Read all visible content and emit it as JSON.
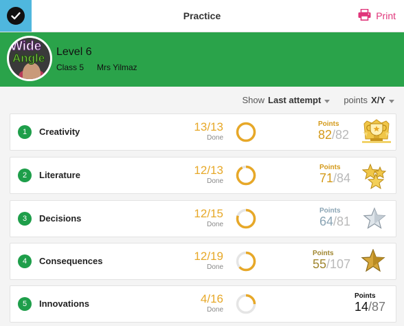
{
  "header": {
    "title": "Practice",
    "print_label": "Print",
    "check_icon": "check-icon",
    "print_icon": "printer-icon"
  },
  "banner": {
    "level": "Level 6",
    "class_name": "Class 5",
    "teacher": "Mrs Yilmaz",
    "avatar_text_1": "Wide",
    "avatar_text_2": "Angle",
    "color": "#2aa34a"
  },
  "filters": {
    "show_label": "Show",
    "show_value": "Last attempt",
    "points_label": "points",
    "points_value": "X/Y"
  },
  "units": [
    {
      "num": "1",
      "name": "Creativity",
      "done": 13,
      "done_total": 13,
      "done_label": "Done",
      "points_label": "Points",
      "points": 82,
      "points_total": 82,
      "award": "trophy-icon"
    },
    {
      "num": "2",
      "name": "Literature",
      "done": 12,
      "done_total": 13,
      "done_label": "Done",
      "points_label": "Points",
      "points": 71,
      "points_total": 84,
      "award": "gold-stars-icon"
    },
    {
      "num": "3",
      "name": "Decisions",
      "done": 12,
      "done_total": 15,
      "done_label": "Done",
      "points_label": "Points",
      "points": 64,
      "points_total": 81,
      "award": "silver-star-icon"
    },
    {
      "num": "4",
      "name": "Consequences",
      "done": 12,
      "done_total": 19,
      "done_label": "Done",
      "points_label": "Points",
      "points": 55,
      "points_total": 107,
      "award": "gold-star-icon"
    },
    {
      "num": "5",
      "name": "Innovations",
      "done": 4,
      "done_total": 16,
      "done_label": "Done",
      "points_label": "Points",
      "points": 14,
      "points_total": 87,
      "award": "none"
    }
  ],
  "colors": {
    "accent_green": "#2aa34a",
    "number_badge": "#1e9e4a",
    "done_orange": "#e7a828",
    "print_pink": "#e0357a",
    "check_blue": "#4fb7de",
    "points_gold": "#d49a1a",
    "points_silver": "#8aa4b4",
    "points_bronze": "#a0862f",
    "points_black": "#111111"
  }
}
